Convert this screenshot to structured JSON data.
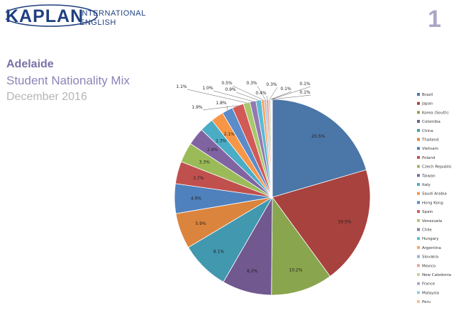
{
  "header": {
    "brand": "KAPLAN",
    "brand_line1": "INTERNATIONAL",
    "brand_line2": "ENGLISH",
    "page_number": "1",
    "brand_color": "#1f3f7f"
  },
  "report": {
    "campus": "Adelaide",
    "title": "Student Nationality Mix",
    "period": "December 2016"
  },
  "chart_data": {
    "type": "pie",
    "legend_position": "right",
    "start_angle": "12 o'clock, clockwise",
    "slices": [
      {
        "label": "Brazil",
        "value": 20.5,
        "value_label": "20.5%",
        "color": "#4a76a8"
      },
      {
        "label": "Japan",
        "value": 19.5,
        "value_label": "19.5%",
        "color": "#a8423f"
      },
      {
        "label": "Korea (South)",
        "value": 10.2,
        "value_label": "10.2%",
        "color": "#89a54e"
      },
      {
        "label": "Colombia",
        "value": 8.2,
        "value_label": "8.2%",
        "color": "#71588f"
      },
      {
        "label": "China",
        "value": 8.1,
        "value_label": "8.1%",
        "color": "#4198af"
      },
      {
        "label": "Thailand",
        "value": 5.9,
        "value_label": "5.9%",
        "color": "#db843d"
      },
      {
        "label": "Vietnam",
        "value": 4.9,
        "value_label": "4.9%",
        "color": "#4f81bd"
      },
      {
        "label": "Poland",
        "value": 3.7,
        "value_label": "3.7%",
        "color": "#c0504d"
      },
      {
        "label": "Czech Republic",
        "value": 3.3,
        "value_label": "3.3%",
        "color": "#9bbb59"
      },
      {
        "label": "Taiwan",
        "value": 2.9,
        "value_label": "2.9%",
        "color": "#8064a2"
      },
      {
        "label": "Italy",
        "value": 2.3,
        "value_label": "2.3%",
        "color": "#4bacc6"
      },
      {
        "label": "Saudi Arabia",
        "value": 2.1,
        "value_label": "2.1%",
        "color": "#f79646"
      },
      {
        "label": "Hong Kong",
        "value": 1.8,
        "value_label": "1.8%",
        "color": "#5b8bc9"
      },
      {
        "label": "Spain",
        "value": 1.9,
        "value_label": "1.9%",
        "color": "#d15a57"
      },
      {
        "label": "Venezuela",
        "value": 1.1,
        "value_label": "1.1%",
        "color": "#a9c86a"
      },
      {
        "label": "Chile",
        "value": 1.0,
        "value_label": "1.0%",
        "color": "#9179b3"
      },
      {
        "label": "Hungary",
        "value": 0.9,
        "value_label": "0.9%",
        "color": "#5cbad4"
      },
      {
        "label": "Argentina",
        "value": 0.5,
        "value_label": "0.5%",
        "color": "#f9a661"
      },
      {
        "label": "Slovakia",
        "value": 0.3,
        "value_label": "0.3%",
        "color": "#95b3d7"
      },
      {
        "label": "Mexico",
        "value": 0.4,
        "value_label": "0.4%",
        "color": "#e6a5a4"
      },
      {
        "label": "New Caledonia",
        "value": 0.3,
        "value_label": "0.3%",
        "color": "#c3d69b"
      },
      {
        "label": "France",
        "value": 0.1,
        "value_label": "0.1%",
        "color": "#b3a2c7"
      },
      {
        "label": "Malaysia",
        "value": 0.1,
        "value_label": "0.1%",
        "color": "#93cddd"
      },
      {
        "label": "Peru",
        "value": 0.1,
        "value_label": "0.1%",
        "color": "#fac090"
      }
    ]
  }
}
